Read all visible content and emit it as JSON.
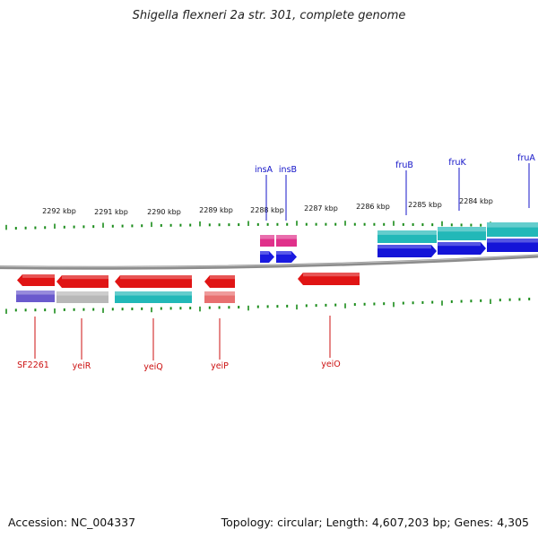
{
  "title": "Shigella flexneri 2a str. 301, complete genome",
  "footer": {
    "accession": "Accession: NC_004337",
    "topology": "Topology: circular; Length: 4,607,203 bp; Genes: 4,305"
  },
  "colors": {
    "backbone": "#8c8c8c",
    "tick": "#1a8c1a",
    "forward_label": "#1414c8",
    "reverse_label": "#cc1111"
  },
  "scale_labels": [
    "2292 kbp",
    "2291 kbp",
    "2290 kbp",
    "2289 kbp",
    "2288 kbp",
    "2287 kbp",
    "2286 kbp",
    "2285 kbp",
    "2284 kbp"
  ],
  "forward_genes": [
    {
      "label": "insA",
      "colors": [
        "#e0308a",
        "#1a1ae0"
      ]
    },
    {
      "label": "insB",
      "colors": [
        "#e0308a",
        "#1a1ae0"
      ]
    },
    {
      "label": "fruB",
      "colors": [
        "#22b8b8",
        "#1414d8"
      ]
    },
    {
      "label": "fruK",
      "colors": [
        "#22b8b8",
        "#1414d8"
      ]
    },
    {
      "label": "fruA",
      "colors": [
        "#22b8b8",
        "#1414d8"
      ]
    }
  ],
  "reverse_genes": [
    {
      "label": "SF2261",
      "colors": [
        "#e01414",
        "#6a5acd"
      ]
    },
    {
      "label": "yeiR",
      "colors": [
        "#e01414",
        "#b8b8b8"
      ]
    },
    {
      "label": "yeiQ",
      "colors": [
        "#e01414",
        "#22b8b8"
      ]
    },
    {
      "label": "yeiP",
      "colors": [
        "#e01414",
        "#e87070"
      ]
    },
    {
      "label": "yeiO",
      "colors": [
        "#e01414"
      ]
    }
  ]
}
